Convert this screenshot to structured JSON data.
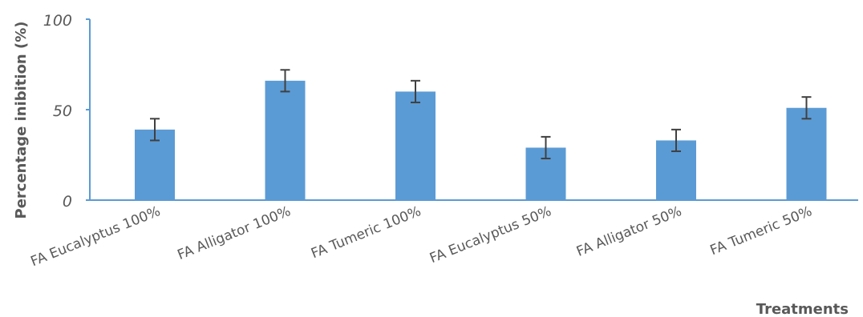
{
  "chart_data": {
    "type": "bar",
    "title": "",
    "xlabel": "Treatments",
    "ylabel": "Percentage inibition (%)",
    "ylim": [
      0,
      100
    ],
    "yticks": [
      "0",
      "50",
      "100"
    ],
    "categories": [
      "FA Eucalyptus 100%",
      "FA Alligator 100%",
      "FA Tumeric 100%",
      "FA Eucalyptus 50%",
      "FA Alligator 50%",
      "FA Tumeric 50%"
    ],
    "series": [
      {
        "values": [
          39,
          66,
          60,
          29,
          33,
          51
        ],
        "error": [
          6,
          6,
          6,
          6,
          6,
          6
        ],
        "color": "#5b9bd5"
      }
    ],
    "grid": false,
    "error_bar_color": "#404040",
    "axis_color": "#5b9bd5"
  }
}
